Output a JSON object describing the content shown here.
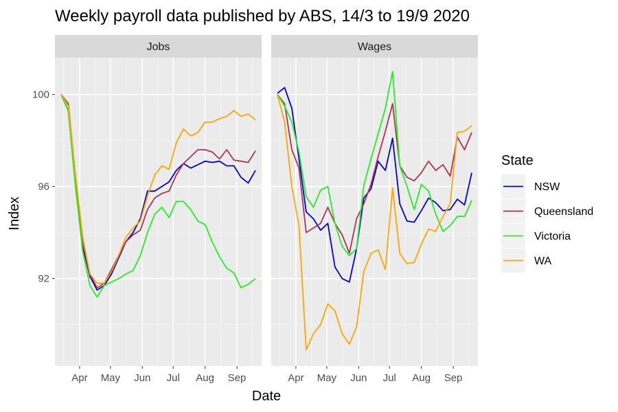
{
  "chart_data": {
    "type": "line",
    "title": "Weekly payroll data published by ABS, 14/3 to 19/9 2020",
    "xlabel": "Date",
    "ylabel": "Index",
    "x_tick_labels": [
      "Apr",
      "May",
      "Jun",
      "Jul",
      "Aug",
      "Sep"
    ],
    "y_ticks": [
      92,
      96,
      100
    ],
    "ylim": [
      88.2,
      101.6
    ],
    "xlim": [
      "2020-03-08",
      "2020-09-25"
    ],
    "grid": true,
    "legend": {
      "title": "State",
      "position": "right"
    },
    "x": [
      "2020-03-14",
      "2020-03-21",
      "2020-03-28",
      "2020-04-04",
      "2020-04-11",
      "2020-04-18",
      "2020-04-25",
      "2020-05-02",
      "2020-05-09",
      "2020-05-16",
      "2020-05-23",
      "2020-05-30",
      "2020-06-06",
      "2020-06-13",
      "2020-06-20",
      "2020-06-27",
      "2020-07-04",
      "2020-07-11",
      "2020-07-18",
      "2020-07-25",
      "2020-08-01",
      "2020-08-08",
      "2020-08-15",
      "2020-08-22",
      "2020-08-29",
      "2020-09-05",
      "2020-09-12",
      "2020-09-19"
    ],
    "panels": [
      {
        "label": "Jobs",
        "series": [
          {
            "name": "NSW",
            "color": "#0000cc",
            "values": [
              100.0,
              99.3,
              96.0,
              93.4,
              92.1,
              91.5,
              91.7,
              92.2,
              92.9,
              93.6,
              94.0,
              94.6,
              95.8,
              95.8,
              96.0,
              96.2,
              96.7,
              97.0,
              96.8,
              96.95,
              97.1,
              97.05,
              97.1,
              96.9,
              96.9,
              96.4,
              96.15,
              96.7
            ]
          },
          {
            "name": "Queensland",
            "color": "#aa3355",
            "values": [
              100.0,
              99.6,
              96.4,
              93.6,
              92.2,
              91.6,
              91.8,
              92.4,
              93.0,
              93.6,
              93.9,
              94.1,
              95.0,
              95.5,
              95.7,
              95.8,
              96.5,
              97.0,
              97.3,
              97.6,
              97.6,
              97.5,
              97.2,
              97.6,
              97.15,
              97.1,
              97.05,
              97.55
            ]
          },
          {
            "name": "Victoria",
            "color": "#22ee22",
            "values": [
              100.0,
              99.3,
              96.0,
              93.2,
              91.7,
              91.2,
              91.7,
              91.85,
              92.0,
              92.2,
              92.35,
              93.0,
              94.0,
              94.8,
              95.1,
              94.65,
              95.35,
              95.35,
              95.0,
              94.5,
              94.35,
              93.6,
              92.95,
              92.45,
              92.25,
              91.6,
              91.75,
              92.0
            ]
          },
          {
            "name": "WA",
            "color": "#ffa500",
            "values": [
              100.0,
              99.5,
              96.5,
              93.8,
              92.2,
              91.8,
              91.8,
              92.3,
              93.0,
              93.8,
              94.2,
              94.5,
              95.6,
              96.5,
              96.9,
              96.75,
              97.9,
              98.5,
              98.2,
              98.35,
              98.8,
              98.8,
              98.95,
              99.05,
              99.3,
              99.05,
              99.15,
              98.9
            ]
          }
        ]
      },
      {
        "label": "Wages",
        "series": [
          {
            "name": "NSW",
            "color": "#0000cc",
            "values": [
              100.05,
              100.3,
              99.4,
              97.2,
              94.9,
              94.6,
              94.1,
              94.4,
              92.5,
              92.0,
              91.85,
              93.3,
              95.5,
              95.9,
              97.1,
              96.7,
              98.1,
              95.25,
              94.5,
              94.45,
              94.95,
              95.5,
              95.3,
              94.95,
              95.0,
              95.45,
              95.2,
              96.6
            ]
          },
          {
            "name": "Queensland",
            "color": "#aa3355",
            "values": [
              100.0,
              99.6,
              97.6,
              96.8,
              94.0,
              94.2,
              94.4,
              95.1,
              94.4,
              93.9,
              93.1,
              94.6,
              95.25,
              96.1,
              97.3,
              98.4,
              99.6,
              96.9,
              96.4,
              96.25,
              96.6,
              97.1,
              96.7,
              96.95,
              96.45,
              98.15,
              97.6,
              98.35
            ]
          },
          {
            "name": "Victoria",
            "color": "#22ee22",
            "values": [
              100.0,
              99.5,
              98.8,
              97.5,
              95.55,
              95.1,
              95.85,
              96.0,
              94.4,
              93.4,
              93.0,
              93.3,
              96.05,
              97.2,
              98.3,
              99.4,
              101.0,
              96.9,
              96.0,
              95.0,
              96.1,
              95.8,
              94.8,
              94.05,
              94.3,
              94.7,
              94.7,
              95.4
            ]
          },
          {
            "name": "WA",
            "color": "#ffa500",
            "values": [
              100.0,
              98.8,
              96.0,
              94.3,
              88.9,
              89.6,
              90.0,
              90.9,
              90.6,
              89.6,
              89.15,
              89.9,
              92.3,
              93.1,
              93.25,
              92.4,
              95.95,
              93.1,
              92.65,
              92.7,
              93.5,
              94.15,
              94.05,
              94.7,
              95.25,
              98.35,
              98.4,
              98.65
            ]
          }
        ]
      }
    ]
  }
}
